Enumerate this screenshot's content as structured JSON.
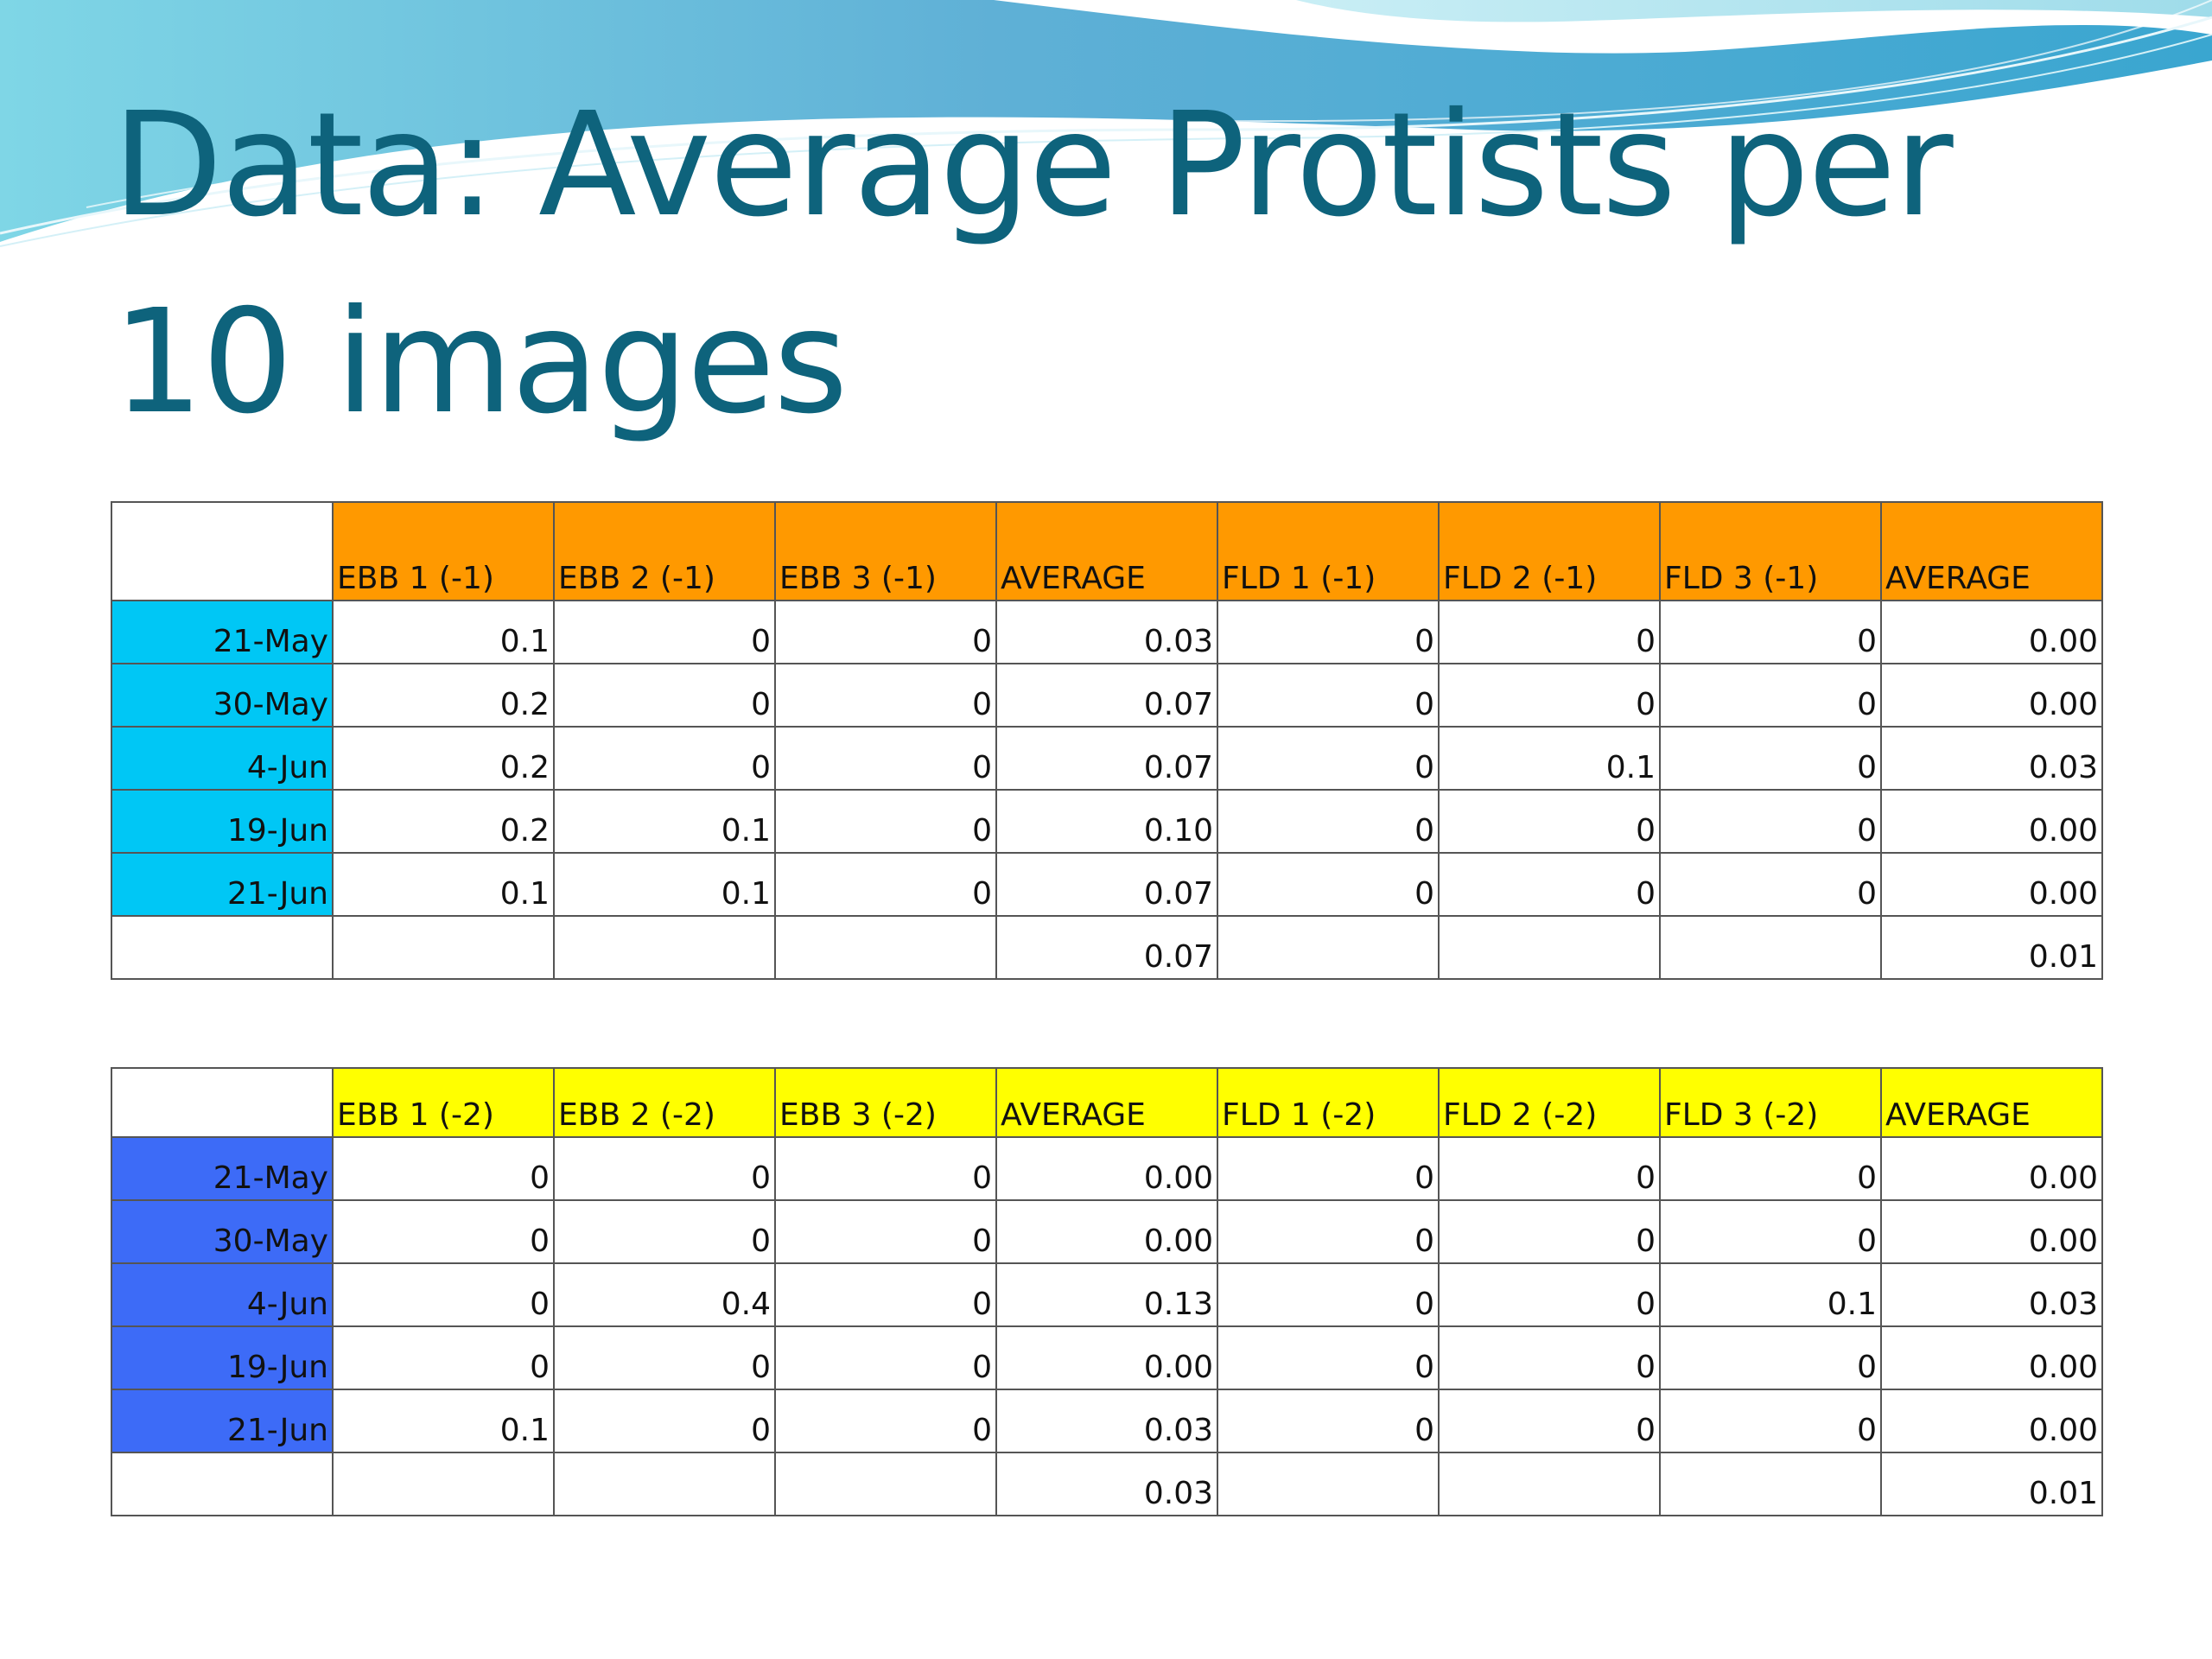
{
  "title_lines": [
    "Data: Average Protists per",
    "10 images"
  ],
  "colors": {
    "title": "#0e637c",
    "table1_header": "#ff9900",
    "table1_dates": "#00c7f5",
    "table2_header": "#ffff00",
    "table2_dates": "#3d6bf7"
  },
  "table1": {
    "headers": [
      "EBB 1 (-1)",
      "EBB 2 (-1)",
      "EBB 3 (-1)",
      "AVERAGE",
      "FLD 1 (-1)",
      "FLD 2 (-1)",
      "FLD 3 (-1)",
      "AVERAGE"
    ],
    "rows": [
      {
        "date": "21-May",
        "cells": [
          "0.1",
          "0",
          "0",
          "0.03",
          "0",
          "0",
          "0",
          "0.00"
        ]
      },
      {
        "date": "30-May",
        "cells": [
          "0.2",
          "0",
          "0",
          "0.07",
          "0",
          "0",
          "0",
          "0.00"
        ]
      },
      {
        "date": "4-Jun",
        "cells": [
          "0.2",
          "0",
          "0",
          "0.07",
          "0",
          "0.1",
          "0",
          "0.03"
        ]
      },
      {
        "date": "19-Jun",
        "cells": [
          "0.2",
          "0.1",
          "0",
          "0.10",
          "0",
          "0",
          "0",
          "0.00"
        ]
      },
      {
        "date": "21-Jun",
        "cells": [
          "0.1",
          "0.1",
          "0",
          "0.07",
          "0",
          "0",
          "0",
          "0.00"
        ]
      }
    ],
    "totals": [
      "",
      "",
      "",
      "0.07",
      "",
      "",
      "",
      "0.01"
    ]
  },
  "table2": {
    "headers": [
      "EBB 1 (-2)",
      "EBB 2 (-2)",
      "EBB 3 (-2)",
      "AVERAGE",
      "FLD 1 (-2)",
      "FLD 2 (-2)",
      "FLD 3 (-2)",
      "AVERAGE"
    ],
    "rows": [
      {
        "date": "21-May",
        "cells": [
          "0",
          "0",
          "0",
          "0.00",
          "0",
          "0",
          "0",
          "0.00"
        ]
      },
      {
        "date": "30-May",
        "cells": [
          "0",
          "0",
          "0",
          "0.00",
          "0",
          "0",
          "0",
          "0.00"
        ]
      },
      {
        "date": "4-Jun",
        "cells": [
          "0",
          "0.4",
          "0",
          "0.13",
          "0",
          "0",
          "0.1",
          "0.03"
        ]
      },
      {
        "date": "19-Jun",
        "cells": [
          "0",
          "0",
          "0",
          "0.00",
          "0",
          "0",
          "0",
          "0.00"
        ]
      },
      {
        "date": "21-Jun",
        "cells": [
          "0.1",
          "0",
          "0",
          "0.03",
          "0",
          "0",
          "0",
          "0.00"
        ]
      }
    ],
    "totals": [
      "",
      "",
      "",
      "0.03",
      "",
      "",
      "",
      "0.01"
    ]
  }
}
